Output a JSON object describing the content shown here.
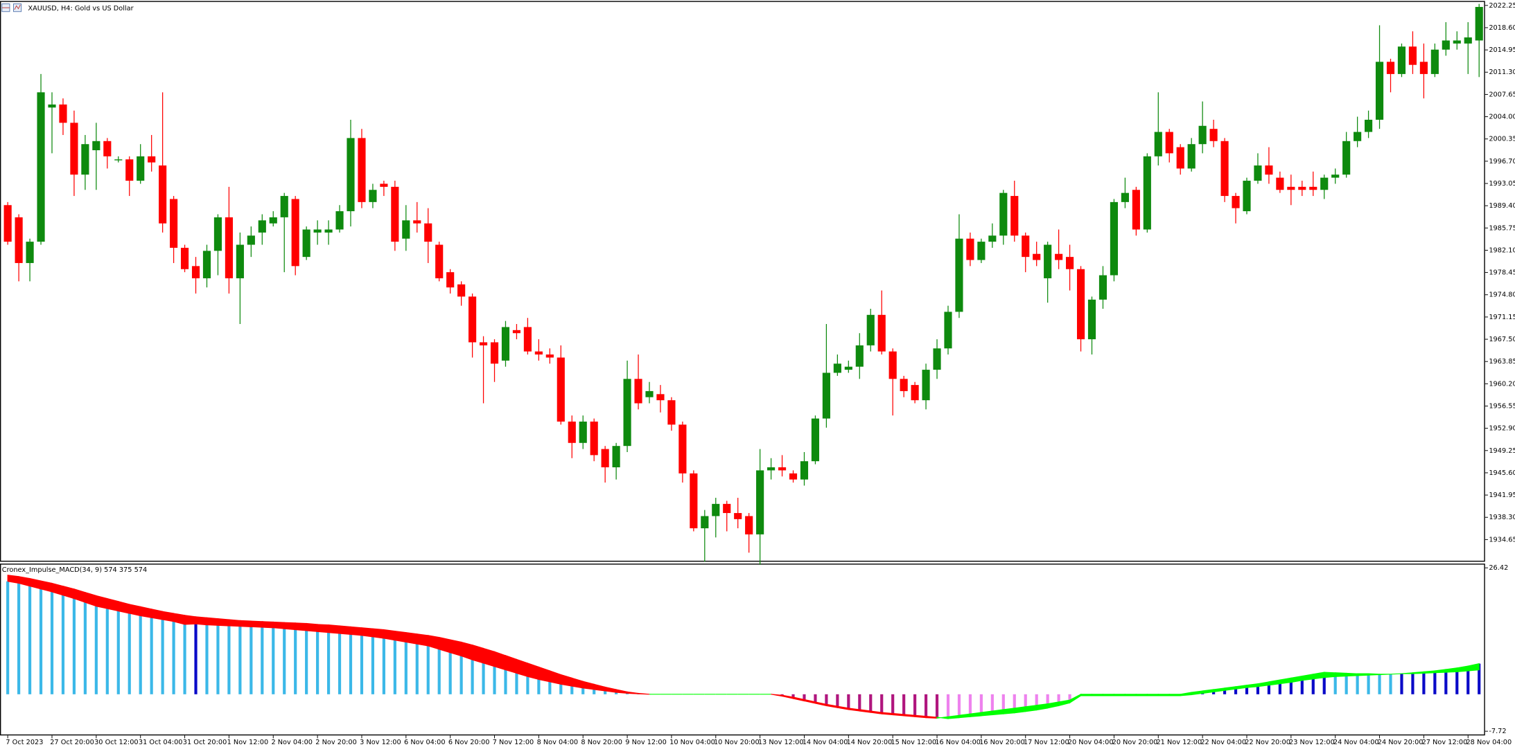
{
  "chart_data": [
    {
      "type": "candlestick",
      "title": "XAUUSD, H4: Gold vs US Dollar",
      "up_color": "#0e8a0e",
      "down_color": "#ff0000",
      "categories": [
        "7 Oct 2023",
        null,
        null,
        null,
        "27 Oct 20:00",
        null,
        null,
        null,
        "30 Oct 12:00",
        null,
        null,
        null,
        "31 Oct 04:00",
        null,
        null,
        null,
        "31 Oct 20:00",
        null,
        null,
        null,
        "1 Nov 12:00",
        null,
        null,
        null,
        "2 Nov 04:00",
        null,
        null,
        null,
        "2 Nov 20:00",
        null,
        null,
        null,
        "3 Nov 12:00",
        null,
        null,
        null,
        "6 Nov 04:00",
        null,
        null,
        null,
        "6 Nov 20:00",
        null,
        null,
        null,
        "7 Nov 12:00",
        null,
        null,
        null,
        "8 Nov 04:00",
        null,
        null,
        null,
        "8 Nov 20:00",
        null,
        null,
        null,
        "9 Nov 12:00",
        null,
        null,
        null,
        "10 Nov 04:00",
        null,
        null,
        null,
        "10 Nov 20:00",
        null,
        null,
        null,
        "13 Nov 12:00",
        null,
        null,
        null,
        "14 Nov 04:00",
        null,
        null,
        null,
        "14 Nov 20:00",
        null,
        null,
        null,
        "15 Nov 12:00",
        null,
        null,
        null,
        "16 Nov 04:00",
        null,
        null,
        null,
        "16 Nov 20:00",
        null,
        null,
        null,
        "17 Nov 12:00",
        null,
        null,
        null,
        "20 Nov 04:00",
        null,
        null,
        null,
        "20 Nov 20:00",
        null,
        null,
        null,
        "21 Nov 12:00",
        null,
        null,
        null,
        "22 Nov 04:00",
        null,
        null,
        null,
        "22 Nov 20:00",
        null,
        null,
        null,
        "23 Nov 12:00",
        null,
        null,
        null,
        "24 Nov 04:00",
        null,
        null,
        null,
        "24 Nov 20:00",
        null,
        null,
        null,
        "27 Nov 12:00",
        null,
        null,
        null,
        "28 Nov 04:00",
        null
      ],
      "open": [
        1989.5,
        1987.5,
        1980,
        1983.5,
        2005.5,
        2006,
        2003,
        1994.5,
        1998.5,
        2000,
        1997,
        1997,
        1993.5,
        1997.5,
        1996,
        1990.5,
        1982.5,
        1979.5,
        1977.5,
        1982,
        1987.5,
        1977.5,
        1983,
        1985,
        1986.5,
        1987.5,
        1990.5,
        1981,
        1985,
        1985,
        1985.5,
        1988.5,
        2000.5,
        1990,
        1993,
        1992.5,
        1984,
        1987,
        1986.5,
        1983,
        1978.5,
        1976.5,
        1974.5,
        1967,
        1967,
        1964,
        1969,
        1969.5,
        1965.5,
        1965,
        1964.5,
        1954,
        1950.5,
        1954,
        1949.5,
        1946.5,
        1950,
        1961,
        1958,
        1958.5,
        1957.5,
        1953.5,
        1945.5,
        1936.5,
        1938.5,
        1940.5,
        1939,
        1938.5,
        1935.5,
        1946,
        1946.5,
        1945.5,
        1944.5,
        1947.5,
        1954.5,
        1962,
        1962.5,
        1963,
        1966.5,
        1971.5,
        1965.5,
        1961,
        1960,
        1957.5,
        1962.5,
        1966,
        1972,
        1984,
        1980.5,
        1983.5,
        1984.5,
        1991,
        1984.5,
        1981.5,
        1977.5,
        1981.5,
        1981,
        1979,
        1967.5,
        1974,
        1978,
        1990,
        1992,
        1985.5,
        1997.5,
        2001.5,
        1999,
        1995.5,
        1999.5,
        2002,
        2000,
        1991,
        1988.5,
        1993.5,
        1996,
        1994,
        1992.5,
        1992.5,
        1992.5,
        1992,
        1994,
        1994.5,
        2000,
        2001.5,
        2003.5,
        2013,
        2011,
        2015.5,
        2013,
        2011,
        2015,
        2016,
        2016,
        2016.5
      ],
      "high": [
        1990,
        1988,
        1984,
        2011,
        2008,
        2007,
        2005,
        2001,
        2003,
        2000.5,
        1997.5,
        1997.5,
        1999.5,
        2001,
        2008,
        1991,
        1983,
        1981,
        1983,
        1988,
        1992.5,
        1985,
        1986,
        1988,
        1988.5,
        1991.5,
        1991,
        1986,
        1987,
        1987,
        1989.5,
        2003.5,
        2002,
        1993,
        1993.5,
        1993.5,
        1989.5,
        1990,
        1989,
        1983.5,
        1979,
        1977,
        1975,
        1968,
        1967.5,
        1970.5,
        1970,
        1971,
        1967.5,
        1966,
        1966.5,
        1955,
        1955,
        1954.5,
        1950,
        1950.5,
        1964,
        1965,
        1960.5,
        1960,
        1958,
        1954,
        1946,
        1939.5,
        1941.5,
        1941,
        1941.5,
        1939,
        1949.5,
        1948,
        1948.5,
        1946,
        1949,
        1955,
        1970,
        1965,
        1964,
        1968.5,
        1972.5,
        1975.5,
        1966,
        1961.5,
        1960.5,
        1963.5,
        1967.5,
        1973,
        1988,
        1985,
        1984,
        1986.5,
        1992,
        1993.5,
        1985,
        1983.5,
        1983.5,
        1985.5,
        1983,
        1979.5,
        1974.5,
        1979.5,
        1990.5,
        1994,
        1992.5,
        1998,
        2008,
        2002,
        1999.5,
        2000.5,
        2006.5,
        2003.5,
        2000.5,
        1991.5,
        1994,
        1998,
        1999,
        1995,
        1994.5,
        1993.5,
        1995,
        1994.5,
        1995.5,
        2001.5,
        2004,
        2005,
        2019,
        2013.5,
        2016,
        2018,
        2016,
        2016,
        2019.5,
        2018,
        2019.5,
        2022.5
      ],
      "low": [
        1983,
        1977,
        1977,
        1983,
        1998,
        2001,
        1991,
        1992,
        1992,
        1995.5,
        1996.5,
        1991,
        1993,
        1995,
        1985,
        1980,
        1978.5,
        1975,
        1976,
        1978,
        1975,
        1970,
        1981,
        1983,
        1986,
        1978.5,
        1978,
        1980.5,
        1983,
        1983,
        1985,
        1986,
        1989,
        1989,
        1991,
        1982,
        1982,
        1985,
        1980,
        1977,
        1975,
        1973,
        1964.5,
        1957,
        1960.5,
        1963,
        1967.5,
        1965,
        1964,
        1963.5,
        1953.5,
        1948,
        1949.5,
        1947.5,
        1944,
        1944.5,
        1949,
        1956,
        1957,
        1955.5,
        1952.5,
        1944,
        1936,
        1931,
        1935,
        1936,
        1936.5,
        1932.5,
        1930.5,
        1944.5,
        1945,
        1944,
        1943.5,
        1947,
        1953,
        1961.5,
        1962,
        1961,
        1965.5,
        1965,
        1955,
        1958,
        1957,
        1956,
        1961,
        1965,
        1971,
        1979.5,
        1980,
        1982.5,
        1983,
        1983.5,
        1978.5,
        1979.5,
        1973.5,
        1979,
        1975.5,
        1965.5,
        1965,
        1972.5,
        1977,
        1989,
        1984.5,
        1985,
        1996,
        1996.5,
        1994.5,
        1995,
        1998,
        1999,
        1990,
        1986.5,
        1988,
        1993,
        1993,
        1991.5,
        1989.5,
        1991,
        1991,
        1990.5,
        1993,
        1994,
        1999,
        2000.5,
        2002,
        2008,
        2010.5,
        2011,
        2007,
        2010.5,
        2014,
        2015,
        2011,
        2010.5
      ],
      "close": [
        1983.5,
        1980,
        1983.5,
        2008,
        2006,
        2003,
        1994.5,
        1999.5,
        2000,
        1997.5,
        1997,
        1993.5,
        1997.5,
        1996.5,
        1986.5,
        1982.5,
        1979,
        1977.5,
        1982,
        1987.5,
        1977.5,
        1983,
        1984.5,
        1987,
        1987.5,
        1991,
        1979.5,
        1985.5,
        1985.5,
        1985.5,
        1988.5,
        2000.5,
        1990,
        1992,
        1992.5,
        1983.5,
        1987,
        1986.5,
        1983.5,
        1977.5,
        1976,
        1974.5,
        1967,
        1966.5,
        1963.5,
        1969.5,
        1968.5,
        1965.5,
        1965,
        1964.5,
        1954,
        1950.5,
        1954,
        1948.5,
        1946.5,
        1950,
        1961,
        1957,
        1959,
        1957.5,
        1953.5,
        1945.5,
        1936.5,
        1938.5,
        1940.5,
        1939,
        1938,
        1935.5,
        1946,
        1946.5,
        1946,
        1944.5,
        1947.5,
        1954.5,
        1962,
        1963.5,
        1963,
        1966.5,
        1971.5,
        1965.5,
        1961,
        1959,
        1957.5,
        1962.5,
        1966,
        1972,
        1984,
        1980.5,
        1983.5,
        1984.5,
        1991.5,
        1984.5,
        1981,
        1980.5,
        1983,
        1980.5,
        1979,
        1967.5,
        1974,
        1978,
        1990,
        1991.5,
        1985.5,
        1997.5,
        2001.5,
        1998,
        1995.5,
        1999.5,
        2002.5,
        2000,
        1991,
        1989,
        1993.5,
        1996,
        1994.5,
        1992,
        1992,
        1992,
        1992,
        1994,
        1994.5,
        2000,
        2001.5,
        2003.5,
        2013,
        2011,
        2015.5,
        2012.5,
        2011,
        2015,
        2016.5,
        2016.5,
        2017,
        2022
      ],
      "ylim": [
        1931.1,
        2022.9
      ],
      "yticks": [
        2022.25,
        {
          "value": 2018.6,
          "label": "2018.60"
        },
        2014.95,
        {
          "value": 2011.3,
          "label": "2011.30"
        },
        2007.65,
        {
          "value": 2004,
          "label": "2004.00"
        },
        2000.35,
        {
          "value": 1996.7,
          "label": "1996.70"
        },
        1993.05,
        {
          "value": 1989.4,
          "label": "1989.40"
        },
        1985.75,
        {
          "value": 1982.1,
          "label": "1982.10"
        },
        1978.45,
        {
          "value": 1974.8,
          "label": "1974.80"
        },
        1971.15,
        {
          "value": 1967.5,
          "label": "1967.50"
        },
        1963.85,
        {
          "value": 1960.2,
          "label": "1960.20"
        },
        1956.55,
        {
          "value": 1952.9,
          "label": "1952.90"
        },
        1949.25,
        {
          "value": 1945.6,
          "label": "1945.60"
        },
        1941.95,
        {
          "value": 1938.3,
          "label": "1938.30"
        },
        1934.65
      ],
      "grid": false
    },
    {
      "type": "impulse_macd",
      "title": "Cronex_Impulse_MACD(34, 9) 574 375 574",
      "bar_colors": {
        "rising_positive": "#0a0ac8",
        "falling_positive": "#3bb8e8",
        "falling_negative": "#b0167e",
        "rising_negative": "#ee82ee"
      },
      "band_colors": {
        "above": "#ff0000",
        "below": "#00ff00"
      },
      "series": [
        {
          "values": [
            23.6,
            23.2,
            22.6,
            22.0,
            21.4,
            20.7,
            20.0,
            19.2,
            18.4,
            17.9,
            17.4,
            16.9,
            16.4,
            16.0,
            15.6,
            15.2,
            14.6,
            14.7,
            14.5,
            14.4,
            14.3,
            14.2,
            14.1,
            14.0,
            13.9,
            13.7,
            13.5,
            13.3,
            13.1,
            12.9,
            12.7,
            12.5,
            12.3,
            12.0,
            11.7,
            11.3,
            10.9,
            10.5,
            10.1,
            9.4,
            8.7,
            8.0,
            7.2,
            6.5,
            5.8,
            5.1,
            4.4,
            3.7,
            3.1,
            2.6,
            2.1,
            1.7,
            1.3,
            1.0,
            0.7,
            0.4,
            0.2,
            0.1,
            0,
            0,
            0,
            0,
            0,
            0,
            0,
            0,
            0,
            0,
            0,
            0,
            -0.4,
            -0.9,
            -1.4,
            -1.9,
            -2.4,
            -2.8,
            -3.2,
            -3.5,
            -3.8,
            -4.1,
            -4.3,
            -4.5,
            -4.7,
            -4.9,
            -5.0,
            -4.7,
            -4.4,
            -4.1,
            -3.8,
            -3.5,
            -3.2,
            -2.9,
            -2.6,
            -2.3,
            -2.0,
            -1.6,
            -1.2,
            0,
            0,
            0,
            0,
            0,
            0,
            0,
            0,
            0,
            0,
            0.4,
            0.7,
            1.0,
            1.3,
            1.6,
            1.9,
            2.2,
            2.6,
            3.0,
            3.4,
            3.8,
            4.2,
            4.6,
            4.5,
            4.4,
            4.3,
            4.3,
            4.2,
            4.2,
            4.3,
            4.5,
            4.7,
            4.9,
            5.2,
            5.5,
            5.9,
            6.4
          ]
        },
        {
          "values": [
            24.9,
            24.6,
            24.2,
            23.7,
            23.2,
            22.6,
            22.0,
            21.3,
            20.6,
            20.0,
            19.4,
            18.8,
            18.3,
            17.8,
            17.3,
            16.9,
            16.5,
            16.2,
            16.0,
            15.8,
            15.6,
            15.4,
            15.3,
            15.2,
            15.1,
            15.0,
            14.9,
            14.8,
            14.6,
            14.5,
            14.3,
            14.1,
            13.9,
            13.7,
            13.5,
            13.2,
            12.9,
            12.6,
            12.3,
            11.9,
            11.4,
            10.9,
            10.3,
            9.6,
            8.9,
            8.1,
            7.3,
            6.5,
            5.7,
            4.9,
            4.1,
            3.4,
            2.7,
            2.1,
            1.5,
            1.0,
            0.5,
            0.2,
            0,
            0,
            0,
            0,
            0,
            0,
            0,
            0,
            0,
            0,
            0,
            0,
            -0.2,
            -0.6,
            -1.1,
            -1.6,
            -2.1,
            -2.5,
            -2.9,
            -3.2,
            -3.5,
            -3.8,
            -4.0,
            -4.2,
            -4.4,
            -4.6,
            -4.8,
            -5.1,
            -4.9,
            -4.7,
            -4.5,
            -4.3,
            -4.1,
            -3.9,
            -3.6,
            -3.3,
            -2.9,
            -2.4,
            -1.8,
            -0.3,
            -0.3,
            -0.3,
            -0.3,
            -0.3,
            -0.3,
            -0.3,
            -0.3,
            -0.3,
            -0.3,
            -0.1,
            0.2,
            0.5,
            0.8,
            1.1,
            1.4,
            1.6,
            1.9,
            2.2,
            2.5,
            2.9,
            3.2,
            3.5,
            3.7,
            3.8,
            3.9,
            4.0,
            4.1,
            4.2,
            4.3,
            4.3,
            4.4,
            4.5,
            4.6,
            4.7,
            4.9,
            5.1
          ]
        }
      ],
      "ylim": [
        -8.5,
        27.2
      ],
      "yticks": [
        26.42,
        -7.72
      ]
    }
  ]
}
